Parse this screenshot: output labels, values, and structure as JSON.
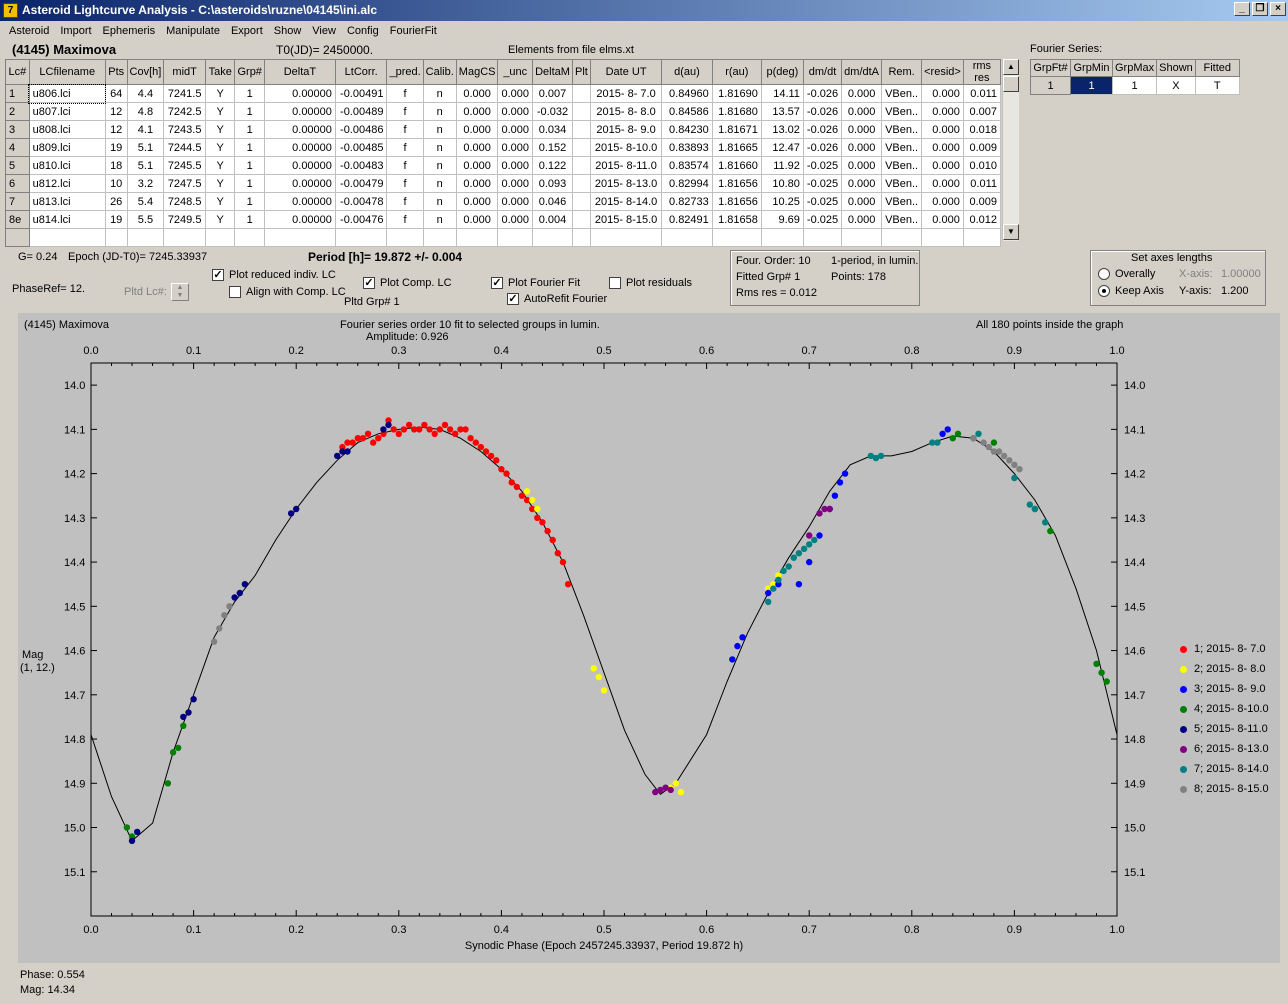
{
  "window": {
    "title": "Asteroid Lightcurve Analysis - C:\\asteroids\\ruzne\\04145\\ini.alc",
    "icon": "7"
  },
  "menu": [
    "Asteroid",
    "Import",
    "Ephemeris",
    "Manipulate",
    "Export",
    "Show",
    "View",
    "Config",
    "FourierFit"
  ],
  "header": {
    "asteroid": "(4145) Maximova",
    "t0": "T0(JD)= 2450000.",
    "elements": "Elements from file elms.xt"
  },
  "table": {
    "columns": [
      "Lc#",
      "LCfilename",
      "Pts",
      "Cov[h]",
      "midT",
      "Take",
      "Grp#",
      "DeltaT",
      "LtCorr.",
      "_pred.",
      "Calib.",
      "MagCS",
      "_unc",
      "DeltaM",
      "Plt",
      "Date UT",
      "d(au)",
      "r(au)",
      "p(deg)",
      "dm/dt",
      "dm/dtA",
      "Rem.",
      "<resid>",
      "rms res"
    ],
    "rows": [
      [
        "1",
        "u806.lci",
        "64",
        "4.4",
        "7241.5",
        "Y",
        "1",
        "0.00000",
        "-0.00491",
        "f",
        "n",
        "0.000",
        "0.000",
        "0.007",
        "",
        "2015- 8- 7.0",
        "0.84960",
        "1.81690",
        "14.11",
        "-0.026",
        "0.000",
        "VBen..",
        "0.000",
        "0.011"
      ],
      [
        "2",
        "u807.lci",
        "12",
        "4.8",
        "7242.5",
        "Y",
        "1",
        "0.00000",
        "-0.00489",
        "f",
        "n",
        "0.000",
        "0.000",
        "-0.032",
        "",
        "2015- 8- 8.0",
        "0.84586",
        "1.81680",
        "13.57",
        "-0.026",
        "0.000",
        "VBen..",
        "0.000",
        "0.007"
      ],
      [
        "3",
        "u808.lci",
        "12",
        "4.1",
        "7243.5",
        "Y",
        "1",
        "0.00000",
        "-0.00486",
        "f",
        "n",
        "0.000",
        "0.000",
        "0.034",
        "",
        "2015- 8- 9.0",
        "0.84230",
        "1.81671",
        "13.02",
        "-0.026",
        "0.000",
        "VBen..",
        "0.000",
        "0.018"
      ],
      [
        "4",
        "u809.lci",
        "19",
        "5.1",
        "7244.5",
        "Y",
        "1",
        "0.00000",
        "-0.00485",
        "f",
        "n",
        "0.000",
        "0.000",
        "0.152",
        "",
        "2015- 8-10.0",
        "0.83893",
        "1.81665",
        "12.47",
        "-0.026",
        "0.000",
        "VBen..",
        "0.000",
        "0.009"
      ],
      [
        "5",
        "u810.lci",
        "18",
        "5.1",
        "7245.5",
        "Y",
        "1",
        "0.00000",
        "-0.00483",
        "f",
        "n",
        "0.000",
        "0.000",
        "0.122",
        "",
        "2015- 8-11.0",
        "0.83574",
        "1.81660",
        "11.92",
        "-0.025",
        "0.000",
        "VBen..",
        "0.000",
        "0.010"
      ],
      [
        "6",
        "u812.lci",
        "10",
        "3.2",
        "7247.5",
        "Y",
        "1",
        "0.00000",
        "-0.00479",
        "f",
        "n",
        "0.000",
        "0.000",
        "0.093",
        "",
        "2015- 8-13.0",
        "0.82994",
        "1.81656",
        "10.80",
        "-0.025",
        "0.000",
        "VBen..",
        "0.000",
        "0.011"
      ],
      [
        "7",
        "u813.lci",
        "26",
        "5.4",
        "7248.5",
        "Y",
        "1",
        "0.00000",
        "-0.00478",
        "f",
        "n",
        "0.000",
        "0.000",
        "0.046",
        "",
        "2015- 8-14.0",
        "0.82733",
        "1.81656",
        "10.25",
        "-0.025",
        "0.000",
        "VBen..",
        "0.000",
        "0.009"
      ],
      [
        "8e",
        "u814.lci",
        "19",
        "5.5",
        "7249.5",
        "Y",
        "1",
        "0.00000",
        "-0.00476",
        "f",
        "n",
        "0.000",
        "0.000",
        "0.004",
        "",
        "2015- 8-15.0",
        "0.82491",
        "1.81658",
        "9.69",
        "-0.025",
        "0.000",
        "VBen..",
        "0.000",
        "0.012"
      ]
    ]
  },
  "fourier_table": {
    "title": "Fourier Series:",
    "columns": [
      "GrpFt#",
      "GrpMin",
      "GrpMax",
      "Shown",
      "Fitted"
    ],
    "row": [
      "1",
      "1",
      "1",
      "X",
      "T"
    ]
  },
  "controls": {
    "g": "G= 0.24",
    "epoch": "Epoch (JD-T0)= 7245.33937",
    "period": "Period [h]= 19.872 +/- 0.004",
    "phaseref": "PhaseRef= 12.",
    "pltd_lc": "Pltd Lc#:",
    "pltd_grp": "Pltd Grp#  1",
    "plot_reduced": "Plot reduced indiv. LC",
    "align_comp": "Align with Comp. LC",
    "plot_comp": "Plot Comp. LC",
    "plot_fourier": "Plot Fourier Fit",
    "autorefit": "AutoRefit Fourier",
    "plot_residuals": "Plot residuals",
    "check": "✓"
  },
  "fit_info": {
    "order": "Four. Order: 10",
    "period_mode": "1-period, in lumin.",
    "fitted_grp": "Fitted Grp# 1",
    "points": "Points: 178",
    "rms": "Rms res     = 0.012"
  },
  "axes_box": {
    "title": "Set axes lengths",
    "overally": "Overally",
    "keep_axis": "Keep Axis",
    "x_axis_label": "X-axis:",
    "x_axis_value": "1.00000",
    "y_axis_label": "Y-axis:",
    "y_axis_value": "1.200"
  },
  "graph": {
    "left_title": "(4145) Maximova",
    "center_title": "Fourier series order 10 fit to selected groups in lumin.",
    "amplitude": "Amplitude: 0.926",
    "right_title": "All 180 points inside the graph",
    "ylabel": "Mag",
    "ylabel2": "(1, 12.)"
  },
  "status": {
    "phase": "Phase:  0.554",
    "mag": "Mag:    14.34"
  },
  "chart_data": {
    "type": "scatter",
    "xlabel": "Synodic Phase (Epoch 2457245.33937, Period 19.872 h)",
    "xlim": [
      0.0,
      1.0
    ],
    "ylim": [
      15.2,
      13.95
    ],
    "x_ticks": [
      "0.0",
      "0.1",
      "0.2",
      "0.3",
      "0.4",
      "0.5",
      "0.6",
      "0.7",
      "0.8",
      "0.9",
      "1.0"
    ],
    "y_ticks": [
      "14.0",
      "14.1",
      "14.2",
      "14.3",
      "14.4",
      "14.5",
      "14.6",
      "14.7",
      "14.8",
      "14.9",
      "15.0",
      "15.1"
    ],
    "fit_curve": [
      [
        0.0,
        14.79
      ],
      [
        0.02,
        14.93
      ],
      [
        0.04,
        15.03
      ],
      [
        0.06,
        14.99
      ],
      [
        0.08,
        14.83
      ],
      [
        0.1,
        14.7
      ],
      [
        0.12,
        14.57
      ],
      [
        0.14,
        14.49
      ],
      [
        0.16,
        14.43
      ],
      [
        0.18,
        14.35
      ],
      [
        0.2,
        14.28
      ],
      [
        0.22,
        14.22
      ],
      [
        0.24,
        14.17
      ],
      [
        0.26,
        14.13
      ],
      [
        0.28,
        14.11
      ],
      [
        0.3,
        14.1
      ],
      [
        0.32,
        14.095
      ],
      [
        0.34,
        14.1
      ],
      [
        0.36,
        14.12
      ],
      [
        0.38,
        14.15
      ],
      [
        0.4,
        14.19
      ],
      [
        0.42,
        14.24
      ],
      [
        0.44,
        14.31
      ],
      [
        0.46,
        14.4
      ],
      [
        0.48,
        14.52
      ],
      [
        0.5,
        14.65
      ],
      [
        0.52,
        14.78
      ],
      [
        0.54,
        14.88
      ],
      [
        0.555,
        14.925
      ],
      [
        0.57,
        14.9
      ],
      [
        0.6,
        14.79
      ],
      [
        0.62,
        14.67
      ],
      [
        0.64,
        14.56
      ],
      [
        0.66,
        14.47
      ],
      [
        0.68,
        14.39
      ],
      [
        0.7,
        14.32
      ],
      [
        0.72,
        14.24
      ],
      [
        0.74,
        14.18
      ],
      [
        0.76,
        14.16
      ],
      [
        0.78,
        14.16
      ],
      [
        0.8,
        14.15
      ],
      [
        0.82,
        14.13
      ],
      [
        0.84,
        14.115
      ],
      [
        0.86,
        14.12
      ],
      [
        0.88,
        14.15
      ],
      [
        0.9,
        14.2
      ],
      [
        0.92,
        14.26
      ],
      [
        0.94,
        14.34
      ],
      [
        0.96,
        14.46
      ],
      [
        0.98,
        14.6
      ],
      [
        1.0,
        14.79
      ]
    ],
    "series": [
      {
        "name": "1; 2015- 8- 7.0",
        "color": "#ff0000",
        "points": [
          [
            0.245,
            14.14
          ],
          [
            0.25,
            14.13
          ],
          [
            0.255,
            14.13
          ],
          [
            0.26,
            14.12
          ],
          [
            0.265,
            14.12
          ],
          [
            0.27,
            14.11
          ],
          [
            0.275,
            14.13
          ],
          [
            0.28,
            14.12
          ],
          [
            0.285,
            14.11
          ],
          [
            0.29,
            14.08
          ],
          [
            0.295,
            14.1
          ],
          [
            0.3,
            14.11
          ],
          [
            0.305,
            14.1
          ],
          [
            0.31,
            14.09
          ],
          [
            0.315,
            14.1
          ],
          [
            0.32,
            14.1
          ],
          [
            0.325,
            14.09
          ],
          [
            0.33,
            14.1
          ],
          [
            0.335,
            14.11
          ],
          [
            0.34,
            14.1
          ],
          [
            0.345,
            14.09
          ],
          [
            0.35,
            14.1
          ],
          [
            0.355,
            14.11
          ],
          [
            0.36,
            14.1
          ],
          [
            0.365,
            14.1
          ],
          [
            0.37,
            14.12
          ],
          [
            0.375,
            14.13
          ],
          [
            0.38,
            14.14
          ],
          [
            0.385,
            14.15
          ],
          [
            0.39,
            14.16
          ],
          [
            0.395,
            14.17
          ],
          [
            0.4,
            14.19
          ],
          [
            0.405,
            14.2
          ],
          [
            0.41,
            14.22
          ],
          [
            0.415,
            14.23
          ],
          [
            0.42,
            14.25
          ],
          [
            0.425,
            14.26
          ],
          [
            0.43,
            14.28
          ],
          [
            0.435,
            14.3
          ],
          [
            0.44,
            14.31
          ],
          [
            0.445,
            14.33
          ],
          [
            0.45,
            14.35
          ],
          [
            0.455,
            14.38
          ],
          [
            0.46,
            14.4
          ],
          [
            0.465,
            14.45
          ]
        ]
      },
      {
        "name": "2; 2015- 8- 8.0",
        "color": "#ffff00",
        "points": [
          [
            0.425,
            14.24
          ],
          [
            0.43,
            14.26
          ],
          [
            0.435,
            14.28
          ],
          [
            0.49,
            14.64
          ],
          [
            0.495,
            14.66
          ],
          [
            0.5,
            14.69
          ],
          [
            0.565,
            14.91
          ],
          [
            0.57,
            14.9
          ],
          [
            0.575,
            14.92
          ],
          [
            0.66,
            14.46
          ],
          [
            0.665,
            14.45
          ],
          [
            0.67,
            14.43
          ]
        ]
      },
      {
        "name": "3; 2015- 8- 9.0",
        "color": "#0000ff",
        "points": [
          [
            0.625,
            14.62
          ],
          [
            0.63,
            14.59
          ],
          [
            0.635,
            14.57
          ],
          [
            0.66,
            14.47
          ],
          [
            0.67,
            14.45
          ],
          [
            0.69,
            14.45
          ],
          [
            0.7,
            14.4
          ],
          [
            0.71,
            14.34
          ],
          [
            0.72,
            14.28
          ],
          [
            0.725,
            14.25
          ],
          [
            0.73,
            14.22
          ],
          [
            0.735,
            14.2
          ],
          [
            0.83,
            14.11
          ],
          [
            0.835,
            14.1
          ]
        ]
      },
      {
        "name": "4; 2015- 8-10.0",
        "color": "#008000",
        "points": [
          [
            0.035,
            15.0
          ],
          [
            0.04,
            15.02
          ],
          [
            0.075,
            14.9
          ],
          [
            0.08,
            14.83
          ],
          [
            0.085,
            14.82
          ],
          [
            0.09,
            14.77
          ],
          [
            0.98,
            14.63
          ],
          [
            0.985,
            14.65
          ],
          [
            0.99,
            14.67
          ],
          [
            0.84,
            14.12
          ],
          [
            0.845,
            14.11
          ],
          [
            0.88,
            14.13
          ],
          [
            0.92,
            14.28
          ],
          [
            0.935,
            14.33
          ]
        ]
      },
      {
        "name": "5; 2015- 8-11.0",
        "color": "#000080",
        "points": [
          [
            0.04,
            15.03
          ],
          [
            0.045,
            15.01
          ],
          [
            0.09,
            14.75
          ],
          [
            0.095,
            14.74
          ],
          [
            0.1,
            14.71
          ],
          [
            0.14,
            14.48
          ],
          [
            0.145,
            14.47
          ],
          [
            0.15,
            14.45
          ],
          [
            0.195,
            14.29
          ],
          [
            0.2,
            14.28
          ],
          [
            0.24,
            14.16
          ],
          [
            0.245,
            14.15
          ],
          [
            0.25,
            14.15
          ],
          [
            0.285,
            14.1
          ],
          [
            0.29,
            14.09
          ]
        ]
      },
      {
        "name": "6; 2015- 8-13.0",
        "color": "#800080",
        "points": [
          [
            0.55,
            14.92
          ],
          [
            0.555,
            14.915
          ],
          [
            0.56,
            14.91
          ],
          [
            0.565,
            14.915
          ],
          [
            0.7,
            14.34
          ],
          [
            0.71,
            14.29
          ],
          [
            0.715,
            14.28
          ],
          [
            0.72,
            14.28
          ]
        ]
      },
      {
        "name": "7; 2015- 8-14.0",
        "color": "#008080",
        "points": [
          [
            0.66,
            14.49
          ],
          [
            0.665,
            14.46
          ],
          [
            0.67,
            14.44
          ],
          [
            0.675,
            14.42
          ],
          [
            0.68,
            14.41
          ],
          [
            0.685,
            14.39
          ],
          [
            0.69,
            14.38
          ],
          [
            0.695,
            14.37
          ],
          [
            0.7,
            14.36
          ],
          [
            0.705,
            14.35
          ],
          [
            0.76,
            14.16
          ],
          [
            0.765,
            14.165
          ],
          [
            0.77,
            14.16
          ],
          [
            0.82,
            14.13
          ],
          [
            0.825,
            14.13
          ],
          [
            0.86,
            14.12
          ],
          [
            0.865,
            14.11
          ],
          [
            0.9,
            14.21
          ],
          [
            0.915,
            14.27
          ],
          [
            0.92,
            14.28
          ],
          [
            0.93,
            14.31
          ]
        ]
      },
      {
        "name": "8; 2015- 8-15.0",
        "color": "#808080",
        "points": [
          [
            0.12,
            14.58
          ],
          [
            0.125,
            14.55
          ],
          [
            0.13,
            14.52
          ],
          [
            0.135,
            14.5
          ],
          [
            0.86,
            14.12
          ],
          [
            0.87,
            14.13
          ],
          [
            0.875,
            14.14
          ],
          [
            0.88,
            14.15
          ],
          [
            0.885,
            14.15
          ],
          [
            0.89,
            14.16
          ],
          [
            0.895,
            14.17
          ],
          [
            0.9,
            14.18
          ],
          [
            0.905,
            14.19
          ]
        ]
      }
    ]
  }
}
